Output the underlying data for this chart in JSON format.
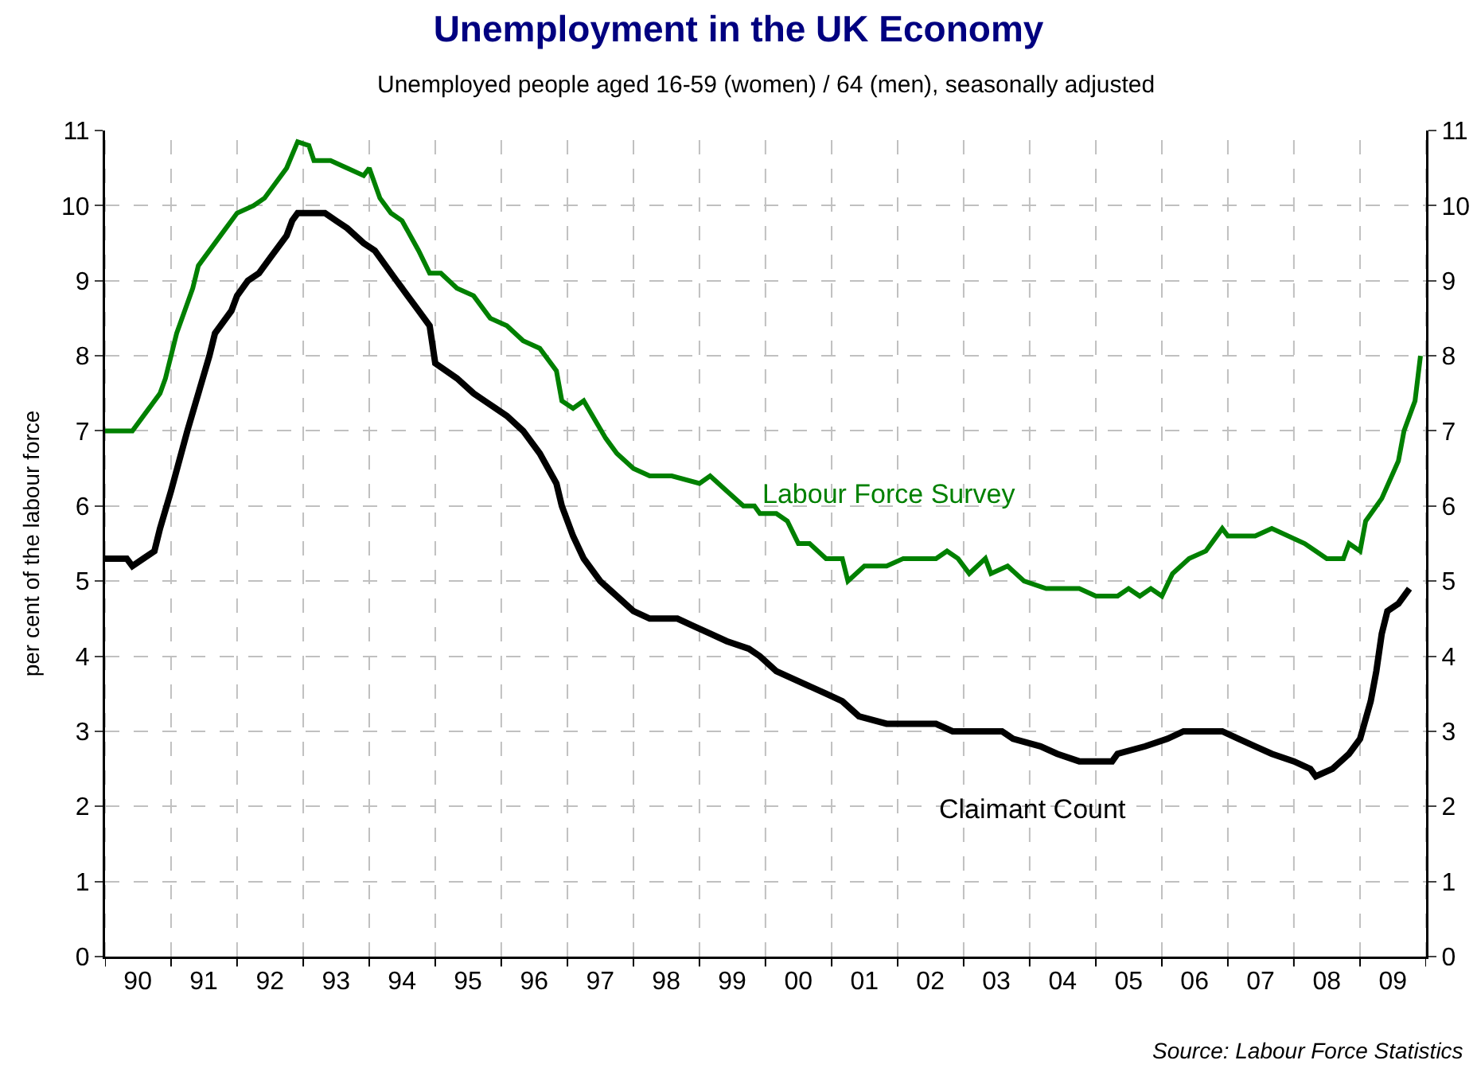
{
  "chart_data": {
    "type": "line",
    "title": "Unemployment in the UK Economy",
    "subtitle": "Unemployed people aged 16-59 (women) / 64 (men), seasonally adjusted",
    "ylabel": "per cent of the labour force",
    "series": [
      {
        "name": "Labour Force Survey",
        "color": "#008000",
        "x": [
          "1990-01",
          "1990-06",
          "1990-09",
          "1990-11",
          "1990-12",
          "1991-02",
          "1991-05",
          "1991-06",
          "1991-10",
          "1992-01",
          "1992-04",
          "1992-06",
          "1992-10",
          "1992-12",
          "1993-02",
          "1993-03",
          "1993-06",
          "1993-09",
          "1993-12",
          "1994-01",
          "1994-03",
          "1994-05",
          "1994-07",
          "1994-10",
          "1994-12",
          "1995-02",
          "1995-05",
          "1995-08",
          "1995-11",
          "1996-02",
          "1996-05",
          "1996-08",
          "1996-11",
          "1996-12",
          "1997-02",
          "1997-04",
          "1997-08",
          "1997-10",
          "1998-01",
          "1998-04",
          "1998-08",
          "1999-01",
          "1999-03",
          "1999-06",
          "1999-09",
          "1999-11",
          "1999-12",
          "2000-03",
          "2000-05",
          "2000-07",
          "2000-09",
          "2000-12",
          "2001-03",
          "2001-04",
          "2001-07",
          "2001-11",
          "2002-02",
          "2002-08",
          "2002-10",
          "2002-12",
          "2003-02",
          "2003-05",
          "2003-06",
          "2003-09",
          "2003-12",
          "2004-04",
          "2004-10",
          "2005-01",
          "2005-05",
          "2005-07",
          "2005-09",
          "2005-11",
          "2006-01",
          "2006-03",
          "2006-06",
          "2006-09",
          "2006-12",
          "2007-01",
          "2007-06",
          "2007-09",
          "2008-03",
          "2008-05",
          "2008-07",
          "2008-10",
          "2008-11",
          "2009-01",
          "2009-02",
          "2009-05",
          "2009-08",
          "2009-09",
          "2009-11",
          "2009-12"
        ],
        "values": [
          7,
          7,
          7.3,
          7.5,
          7.7,
          8.3,
          8.9,
          9.2,
          9.6,
          9.9,
          10,
          10.1,
          10.5,
          10.85,
          10.8,
          10.6,
          10.6,
          10.5,
          10.4,
          10.5,
          10.1,
          9.9,
          9.8,
          9.4,
          9.1,
          9.1,
          8.9,
          8.8,
          8.5,
          8.4,
          8.2,
          8.1,
          7.8,
          7.4,
          7.3,
          7.4,
          6.9,
          6.7,
          6.5,
          6.4,
          6.4,
          6.3,
          6.4,
          6.2,
          6,
          6,
          5.9,
          5.9,
          5.8,
          5.5,
          5.5,
          5.3,
          5.3,
          5,
          5.2,
          5.2,
          5.3,
          5.3,
          5.4,
          5.3,
          5.1,
          5.3,
          5.1,
          5.2,
          5,
          4.9,
          4.9,
          4.8,
          4.8,
          4.9,
          4.8,
          4.9,
          4.8,
          5.1,
          5.3,
          5.4,
          5.7,
          5.6,
          5.6,
          5.7,
          5.5,
          5.4,
          5.3,
          5.3,
          5.5,
          5.4,
          5.8,
          6.1,
          6.6,
          7,
          7.4,
          8
        ]
      },
      {
        "name": "Claimant Count",
        "color": "#000000",
        "x": [
          "1990-01",
          "1990-05",
          "1990-06",
          "1990-08",
          "1990-10",
          "1990-11",
          "1991-01",
          "1991-04",
          "1991-06",
          "1991-08",
          "1991-09",
          "1991-12",
          "1992-01",
          "1992-03",
          "1992-05",
          "1992-07",
          "1992-10",
          "1992-11",
          "1992-12",
          "1993-05",
          "1993-07",
          "1993-09",
          "1993-12",
          "1994-02",
          "1994-06",
          "1994-10",
          "1994-12",
          "1995-01",
          "1995-05",
          "1995-08",
          "1995-10",
          "1996-02",
          "1996-05",
          "1996-08",
          "1996-11",
          "1996-12",
          "1997-02",
          "1997-04",
          "1997-07",
          "1997-10",
          "1998-01",
          "1998-04",
          "1998-09",
          "1998-12",
          "1999-03",
          "1999-06",
          "1999-10",
          "1999-12",
          "2000-03",
          "2000-06",
          "2000-09",
          "2000-12",
          "2001-03",
          "2001-06",
          "2001-11",
          "2002-08",
          "2002-11",
          "2003-08",
          "2003-10",
          "2004-03",
          "2004-06",
          "2004-10",
          "2005-04",
          "2005-05",
          "2005-10",
          "2006-02",
          "2006-05",
          "2006-12",
          "2007-03",
          "2007-06",
          "2007-09",
          "2008-01",
          "2008-04",
          "2008-05",
          "2008-08",
          "2008-11",
          "2009-01",
          "2009-03",
          "2009-04",
          "2009-05",
          "2009-06",
          "2009-08",
          "2009-10"
        ],
        "values": [
          5.3,
          5.3,
          5.2,
          5.3,
          5.4,
          5.7,
          6.2,
          7,
          7.5,
          8,
          8.3,
          8.6,
          8.8,
          9,
          9.1,
          9.3,
          9.6,
          9.8,
          9.9,
          9.9,
          9.8,
          9.7,
          9.5,
          9.4,
          9,
          8.6,
          8.4,
          7.9,
          7.7,
          7.5,
          7.4,
          7.2,
          7,
          6.7,
          6.3,
          6,
          5.6,
          5.3,
          5,
          4.8,
          4.6,
          4.5,
          4.5,
          4.4,
          4.3,
          4.2,
          4.1,
          4,
          3.8,
          3.7,
          3.6,
          3.5,
          3.4,
          3.2,
          3.1,
          3.1,
          3,
          3,
          2.9,
          2.8,
          2.7,
          2.6,
          2.6,
          2.7,
          2.8,
          2.9,
          3,
          3,
          2.9,
          2.8,
          2.7,
          2.6,
          2.5,
          2.4,
          2.5,
          2.7,
          2.9,
          3.4,
          3.8,
          4.3,
          4.6,
          4.7,
          4.9
        ]
      }
    ],
    "xlim": [
      "1990-01-01",
      "2010-01-01"
    ],
    "xticks": [
      {
        "value": "1990",
        "label": null
      },
      {
        "value": "1990-07",
        "label": "90"
      },
      {
        "value": "1991",
        "label": null
      },
      {
        "value": "1991-07",
        "label": "91"
      },
      {
        "value": "1992",
        "label": null
      },
      {
        "value": "1992-07",
        "label": "92"
      },
      {
        "value": "1993",
        "label": null
      },
      {
        "value": "1993-07",
        "label": "93"
      },
      {
        "value": "1994",
        "label": null
      },
      {
        "value": "1994-07",
        "label": "94"
      },
      {
        "value": "1995",
        "label": null
      },
      {
        "value": "1995-07",
        "label": "95"
      },
      {
        "value": "1996",
        "label": null
      },
      {
        "value": "1996-07",
        "label": "96"
      },
      {
        "value": "1997",
        "label": null
      },
      {
        "value": "1997-07",
        "label": "97"
      },
      {
        "value": "1998",
        "label": null
      },
      {
        "value": "1998-07",
        "label": "98"
      },
      {
        "value": "1999",
        "label": null
      },
      {
        "value": "1999-07",
        "label": "99"
      },
      {
        "value": "2000",
        "label": null
      },
      {
        "value": "2000-07",
        "label": "00"
      },
      {
        "value": "2001",
        "label": null
      },
      {
        "value": "2001-07",
        "label": "01"
      },
      {
        "value": "2002",
        "label": null
      },
      {
        "value": "2002-07",
        "label": "02"
      },
      {
        "value": "2003",
        "label": null
      },
      {
        "value": "2003-07",
        "label": "03"
      },
      {
        "value": "2004",
        "label": null
      },
      {
        "value": "2004-07",
        "label": "04"
      },
      {
        "value": "2005",
        "label": null
      },
      {
        "value": "2005-07",
        "label": "05"
      },
      {
        "value": "2006",
        "label": null
      },
      {
        "value": "2006-07",
        "label": "06"
      },
      {
        "value": "2007",
        "label": null
      },
      {
        "value": "2007-07",
        "label": "07"
      },
      {
        "value": "2008",
        "label": null
      },
      {
        "value": "2008-07",
        "label": "08"
      },
      {
        "value": "2009",
        "label": null
      },
      {
        "value": "2009-07",
        "label": "09"
      },
      {
        "value": "2010",
        "label": null
      }
    ],
    "ylim": [
      0,
      11
    ],
    "yticks": [
      0,
      1,
      2,
      3,
      4,
      5,
      6,
      7,
      8,
      9,
      10,
      11
    ],
    "y2lim": [
      0,
      11
    ],
    "y2ticks": [
      0,
      1,
      2,
      3,
      4,
      5,
      6,
      7,
      8,
      9,
      10,
      11
    ],
    "grid": true,
    "legend": false,
    "marker": "none",
    "line_style": "solid",
    "annotations": [
      "Source: Labour Force Statistics"
    ]
  }
}
